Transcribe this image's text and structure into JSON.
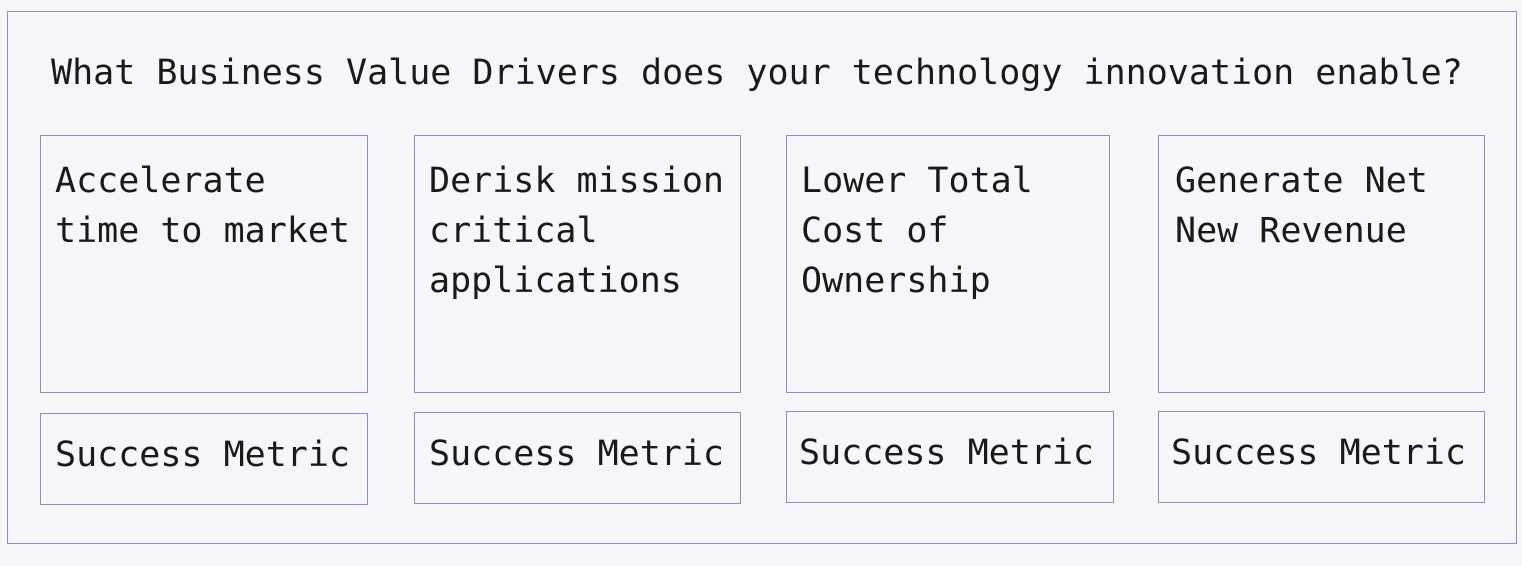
{
  "title": "What Business Value Drivers does your technology innovation enable?",
  "columns": [
    {
      "driver": "Accelerate time to market",
      "metric": "Success Metric"
    },
    {
      "driver": "Derisk mission critical applications",
      "metric": "Success Metric"
    },
    {
      "driver": "Lower Total Cost of Ownership",
      "metric": "Success Metric"
    },
    {
      "driver": "Generate Net New Revenue",
      "metric": "Success Metric"
    }
  ],
  "colors": {
    "background": "#f5f5fa",
    "border": "#8a8fc0",
    "text": "#1a1a1a"
  }
}
